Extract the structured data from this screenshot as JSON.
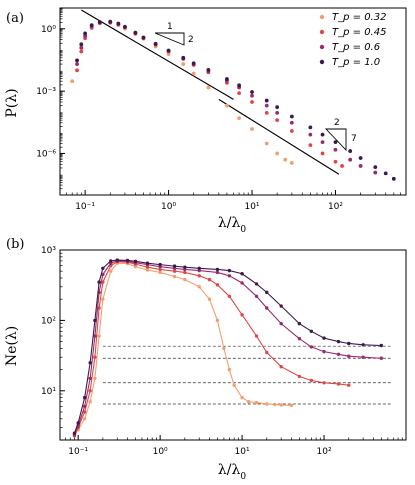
{
  "colors": {
    "Tp032": "#f0a070",
    "Tp045": "#e04848",
    "Tp06": "#9c2a6c",
    "Tp10": "#3a1a4c",
    "fit": "#000000",
    "hline": "#333333"
  },
  "chart_data": [
    {
      "type": "scatter",
      "panel": "(a)",
      "xlabel": "λ/λ0",
      "ylabel": "P(λ)",
      "xscale": "log",
      "yscale": "log",
      "xlim": [
        0.05,
        700
      ],
      "ylim": [
        1e-08,
        10
      ],
      "xticks": [
        {
          "v": 0.1,
          "label": "10⁻¹"
        },
        {
          "v": 1,
          "label": "10⁰"
        },
        {
          "v": 10,
          "label": "10¹"
        },
        {
          "v": 100,
          "label": "10²"
        }
      ],
      "yticks": [
        {
          "v": 1,
          "label": "10⁰"
        },
        {
          "v": 0.001,
          "label": "10⁻³"
        },
        {
          "v": 1e-06,
          "label": "10⁻⁶"
        }
      ],
      "legend_position": "top-right",
      "series": [
        {
          "name": "T_p = 0.32",
          "color_key": "Tp032",
          "x": [
            0.07,
            0.08,
            0.09,
            0.1,
            0.12,
            0.15,
            0.2,
            0.25,
            0.3,
            0.4,
            0.5,
            0.7,
            1,
            1.5,
            2,
            3,
            5,
            7,
            10,
            15,
            20,
            25,
            30
          ],
          "y": [
            0.003,
            0.03,
            0.15,
            0.5,
            1.2,
            1.8,
            1.9,
            1.5,
            1.0,
            0.55,
            0.33,
            0.14,
            0.06,
            0.02,
            0.007,
            0.0015,
            0.0002,
            5e-05,
            1.5e-05,
            3e-06,
            1e-06,
            5e-07,
            3.5e-07
          ]
        },
        {
          "name": "T_p = 0.45",
          "color_key": "Tp045",
          "x": [
            0.08,
            0.09,
            0.1,
            0.12,
            0.15,
            0.2,
            0.25,
            0.3,
            0.4,
            0.5,
            0.7,
            1,
            1.5,
            2,
            3,
            5,
            7,
            10,
            15,
            20,
            30,
            50,
            70,
            100,
            120
          ],
          "y": [
            0.01,
            0.08,
            0.35,
            1.1,
            1.9,
            2.0,
            1.6,
            1.15,
            0.6,
            0.35,
            0.17,
            0.08,
            0.035,
            0.018,
            0.008,
            0.0025,
            0.0008,
            0.0003,
            9e-05,
            4e-05,
            1.2e-05,
            2.5e-06,
            1e-06,
            4e-07,
            2.5e-07
          ]
        },
        {
          "name": "T_p = 0.6",
          "color_key": "Tp06",
          "x": [
            0.08,
            0.09,
            0.1,
            0.12,
            0.15,
            0.2,
            0.25,
            0.3,
            0.4,
            0.5,
            0.7,
            1,
            1.5,
            2,
            3,
            5,
            7,
            10,
            15,
            20,
            30,
            50,
            70,
            100,
            150,
            200,
            300
          ],
          "y": [
            0.02,
            0.12,
            0.45,
            1.3,
            2.0,
            2.1,
            1.7,
            1.2,
            0.62,
            0.37,
            0.18,
            0.085,
            0.038,
            0.02,
            0.009,
            0.0032,
            0.0015,
            0.0006,
            0.0002,
            9e-05,
            3e-05,
            8e-06,
            3.5e-06,
            1.5e-06,
            5e-07,
            2.5e-07,
            1.2e-07
          ]
        },
        {
          "name": "T_p = 1.0",
          "color_key": "Tp10",
          "x": [
            0.08,
            0.09,
            0.1,
            0.12,
            0.15,
            0.2,
            0.25,
            0.3,
            0.4,
            0.5,
            0.7,
            1,
            1.5,
            2,
            3,
            5,
            7,
            10,
            15,
            20,
            30,
            50,
            70,
            100,
            150,
            200,
            300,
            400,
            500
          ],
          "y": [
            0.03,
            0.18,
            0.6,
            1.5,
            2.1,
            2.2,
            1.8,
            1.25,
            0.65,
            0.38,
            0.19,
            0.09,
            0.04,
            0.022,
            0.0105,
            0.0038,
            0.0019,
            0.0009,
            0.00035,
            0.00017,
            6e-05,
            1.8e-05,
            8e-06,
            3.5e-06,
            1.3e-06,
            6e-07,
            2.2e-07,
            1.1e-07,
            6e-08
          ]
        }
      ],
      "fit_lines": [
        {
          "x": [
            0.09,
            6
          ],
          "y": [
            8,
            0.0004
          ]
        },
        {
          "x": [
            4,
            110
          ],
          "y": [
            0.0004,
            1e-07
          ]
        }
      ],
      "slope_triangles": [
        {
          "rise": "2",
          "run": "1"
        },
        {
          "rise": "7",
          "run": "2"
        }
      ]
    },
    {
      "type": "line",
      "panel": "(b)",
      "xlabel": "λ/λ0",
      "ylabel": "Ne(λ)",
      "xscale": "log",
      "yscale": "log",
      "xlim": [
        0.06,
        1000
      ],
      "ylim": [
        2,
        1000
      ],
      "xticks": [
        {
          "v": 0.1,
          "label": "10⁻¹"
        },
        {
          "v": 1,
          "label": "10⁰"
        },
        {
          "v": 10,
          "label": "10¹"
        },
        {
          "v": 100,
          "label": "10²"
        }
      ],
      "yticks": [
        {
          "v": 10,
          "label": "10¹"
        },
        {
          "v": 100,
          "label": "10²"
        },
        {
          "v": 1000,
          "label": "10³"
        }
      ],
      "hlines": [
        43,
        29,
        13,
        6.5
      ],
      "series": [
        {
          "name": "T_p = 0.32",
          "color_key": "Tp032",
          "x": [
            0.09,
            0.1,
            0.12,
            0.14,
            0.16,
            0.18,
            0.2,
            0.25,
            0.3,
            0.4,
            0.5,
            0.7,
            1,
            1.5,
            2,
            3,
            4,
            5,
            6,
            7,
            8,
            10,
            12,
            15,
            20,
            25,
            30,
            40
          ],
          "y": [
            2.3,
            2.8,
            4,
            7,
            15,
            60,
            200,
            500,
            650,
            640,
            580,
            520,
            480,
            420,
            380,
            300,
            200,
            100,
            40,
            20,
            12,
            8,
            7,
            6.8,
            6.5,
            6.4,
            6.3,
            6.2
          ]
        },
        {
          "name": "T_p = 0.45",
          "color_key": "Tp045",
          "x": [
            0.09,
            0.1,
            0.12,
            0.14,
            0.16,
            0.18,
            0.2,
            0.25,
            0.3,
            0.4,
            0.5,
            0.7,
            1,
            1.5,
            2,
            3,
            4,
            5,
            7,
            10,
            15,
            20,
            30,
            50,
            70,
            100,
            150,
            200
          ],
          "y": [
            2.3,
            3,
            5,
            10,
            30,
            150,
            350,
            600,
            680,
            670,
            630,
            570,
            530,
            500,
            480,
            430,
            380,
            320,
            220,
            120,
            60,
            35,
            22,
            16,
            14,
            13,
            12.5,
            12
          ]
        },
        {
          "name": "T_p = 0.6",
          "color_key": "Tp06",
          "x": [
            0.09,
            0.1,
            0.12,
            0.14,
            0.16,
            0.18,
            0.2,
            0.25,
            0.3,
            0.4,
            0.5,
            0.7,
            1,
            1.5,
            2,
            3,
            5,
            7,
            10,
            15,
            20,
            30,
            50,
            70,
            100,
            150,
            200,
            300,
            500
          ],
          "y": [
            2.4,
            3.2,
            6,
            15,
            60,
            250,
            450,
            650,
            700,
            690,
            660,
            620,
            580,
            550,
            530,
            510,
            480,
            430,
            340,
            220,
            150,
            90,
            55,
            42,
            36,
            33,
            31,
            30,
            29
          ]
        },
        {
          "name": "T_p = 1.0",
          "color_key": "Tp10",
          "x": [
            0.09,
            0.1,
            0.12,
            0.14,
            0.16,
            0.18,
            0.2,
            0.25,
            0.3,
            0.4,
            0.5,
            0.7,
            1,
            1.5,
            2,
            3,
            5,
            7,
            10,
            15,
            20,
            30,
            50,
            70,
            100,
            150,
            200,
            300,
            500
          ],
          "y": [
            2.5,
            3.5,
            8,
            25,
            100,
            350,
            550,
            700,
            720,
            710,
            690,
            650,
            620,
            590,
            570,
            550,
            530,
            510,
            460,
            330,
            250,
            160,
            90,
            70,
            56,
            50,
            47,
            45,
            44
          ]
        }
      ]
    }
  ]
}
